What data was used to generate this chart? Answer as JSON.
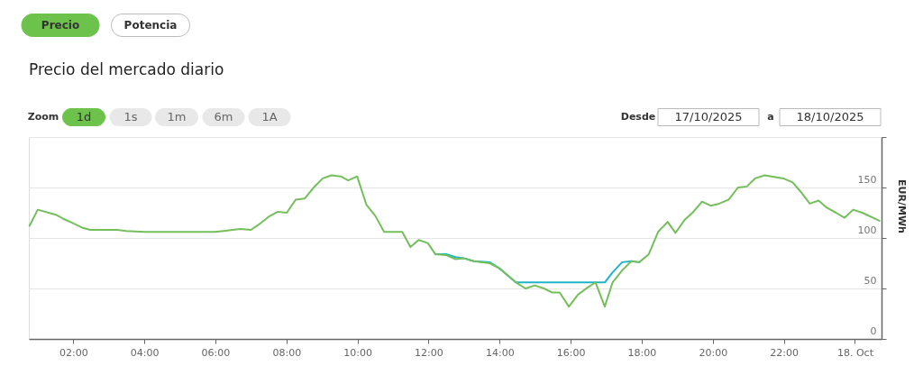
{
  "chart_data": {
    "type": "line",
    "title": "Precio del mercado diario",
    "annotations": [
      "Precio",
      "Potencia",
      "Zoom",
      "1d",
      "1s",
      "1m",
      "6m",
      "1A",
      "Desde",
      "17/10/2025",
      "a",
      "18/10/2025"
    ],
    "ylabel": "EUR/MWh",
    "x": [
      0.77,
      1.0,
      1.51,
      1.72,
      1.97,
      2.27,
      2.48,
      3.24,
      3.49,
      4.0,
      5.98,
      6.24,
      6.7,
      7.0,
      7.21,
      7.5,
      7.76,
      8.01,
      8.26,
      8.51,
      8.77,
      9.02,
      9.27,
      9.53,
      9.74,
      9.99,
      10.25,
      10.5,
      10.75,
      11.26,
      11.49,
      11.72,
      11.98,
      12.19,
      12.5,
      12.76,
      12.98,
      13.28,
      13.72,
      13.99,
      14.46,
      14.73,
      14.99,
      15.25,
      15.47,
      15.69,
      15.95,
      16.21,
      16.48,
      16.7,
      16.96,
      17.18,
      17.45,
      17.71,
      17.93,
      18.2,
      18.46,
      18.73,
      18.95,
      19.21,
      19.43,
      19.7,
      19.94,
      20.18,
      20.45,
      20.71,
      20.96,
      21.19,
      21.46,
      21.99,
      22.25,
      22.47,
      22.73,
      22.98,
      23.21,
      23.47,
      23.71,
      23.95,
      24.21,
      24.69
    ],
    "xlim": [
      0.75,
      24.75
    ],
    "xticks": [
      {
        "value": 2,
        "label": "02:00"
      },
      {
        "value": 4,
        "label": "04:00"
      },
      {
        "value": 6,
        "label": "06:00"
      },
      {
        "value": 8,
        "label": "08:00"
      },
      {
        "value": 10,
        "label": "10:00"
      },
      {
        "value": 12,
        "label": "12:00"
      },
      {
        "value": 14,
        "label": "14:00"
      },
      {
        "value": 16,
        "label": "16:00"
      },
      {
        "value": 18,
        "label": "18:00"
      },
      {
        "value": 20,
        "label": "20:00"
      },
      {
        "value": 22,
        "label": "22:00"
      },
      {
        "value": 24,
        "label": "18. Oct"
      }
    ],
    "ylim": [
      0,
      200
    ],
    "yticks": [
      0,
      50,
      100,
      150,
      {
        "value": 200,
        "label": null
      }
    ],
    "grid": "y",
    "line_style": "solid",
    "series": [
      {
        "color": "#1fb5c8",
        "x": [
          12.19,
          12.5,
          12.76,
          12.98,
          13.28,
          13.72,
          13.99,
          14.46,
          16.96,
          17.18,
          17.45,
          17.71,
          17.93
        ],
        "values": [
          84,
          84,
          81,
          80,
          77,
          76,
          70,
          56,
          56,
          66,
          76,
          77,
          76
        ]
      },
      {
        "color": "#74bf5c",
        "values": [
          112,
          128,
          123,
          119,
          115,
          110,
          108,
          108,
          107,
          106,
          106,
          107,
          109,
          108,
          113,
          121,
          126,
          125,
          138,
          139,
          150,
          159,
          162,
          161,
          157,
          161,
          133,
          122,
          106,
          106,
          91,
          98,
          95,
          84,
          83,
          79,
          80,
          77,
          75,
          70,
          56,
          50,
          53,
          50,
          46,
          46,
          32,
          44,
          51,
          56,
          32,
          56,
          68,
          77,
          76,
          84,
          106,
          116,
          105,
          118,
          125,
          136,
          132,
          134,
          138,
          150,
          151,
          159,
          162,
          159,
          155,
          146,
          134,
          137,
          130,
          125,
          120,
          128,
          125,
          117
        ]
      }
    ]
  }
}
